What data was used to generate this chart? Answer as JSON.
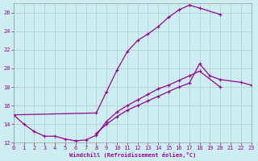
{
  "xlabel": "Windchill (Refroidissement éolien,°C)",
  "bg_color": "#cceef0",
  "line_color": "#990099",
  "grid_color": "#aacccc",
  "xlim": [
    0,
    23
  ],
  "ylim": [
    12,
    27
  ],
  "yticks": [
    12,
    14,
    16,
    18,
    20,
    22,
    24,
    26
  ],
  "xticks": [
    0,
    1,
    2,
    3,
    4,
    5,
    6,
    7,
    8,
    9,
    10,
    11,
    12,
    13,
    14,
    15,
    16,
    17,
    18,
    19,
    20,
    21,
    22,
    23
  ],
  "curve1_x": [
    0,
    1,
    2,
    3,
    4,
    5,
    6,
    7,
    8,
    9,
    10,
    11,
    12,
    13,
    14,
    15,
    16,
    17,
    18,
    20
  ],
  "curve1_y": [
    15.0,
    14.0,
    13.2,
    12.7,
    12.7,
    12.4,
    12.2,
    12.3,
    12.8,
    14.3,
    15.3,
    16.0,
    16.6,
    17.2,
    17.8,
    18.2,
    18.7,
    19.2,
    19.7,
    18.0
  ],
  "curve2_x": [
    0,
    8,
    9,
    10,
    11,
    12,
    13,
    14,
    15,
    16,
    17,
    18,
    20
  ],
  "curve2_y": [
    15.0,
    15.2,
    17.5,
    19.8,
    21.8,
    23.0,
    23.7,
    24.5,
    25.5,
    26.3,
    26.8,
    26.5,
    25.8
  ],
  "curve3_x": [
    8,
    9,
    10,
    11,
    12,
    13,
    14,
    15,
    16,
    17,
    18,
    19,
    20,
    22,
    23
  ],
  "curve3_y": [
    13.0,
    14.0,
    14.8,
    15.5,
    16.0,
    16.5,
    17.0,
    17.5,
    18.0,
    18.4,
    20.5,
    19.2,
    18.8,
    18.5,
    18.2
  ]
}
